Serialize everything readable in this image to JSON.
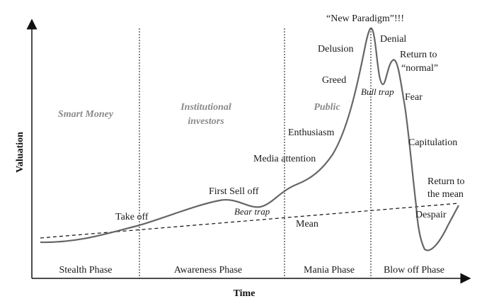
{
  "axes": {
    "x_title": "Time",
    "y_title": "Valuation"
  },
  "phases": [
    "Stealth Phase",
    "Awareness Phase",
    "Mania Phase",
    "Blow off Phase"
  ],
  "groups": {
    "smart_money": "Smart Money",
    "institutional_1": "Institutional",
    "institutional_2": "investors",
    "public": "Public"
  },
  "labels": {
    "take_off": "Take off",
    "first_sell_off": "First Sell off",
    "bear_trap": "Bear trap",
    "media_attention": "Media attention",
    "enthusiasm": "Enthusiasm",
    "greed": "Greed",
    "delusion": "Delusion",
    "new_paradigm": "“New Paradigm”!!!",
    "denial": "Denial",
    "return_normal_1": "Return to",
    "return_normal_2": "“normal”",
    "bull_trap": "Bull trap",
    "fear": "Fear",
    "capitulation": "Capitulation",
    "return_mean_1": "Return to",
    "return_mean_2": "the mean",
    "despair": "Despair",
    "mean": "Mean"
  }
}
